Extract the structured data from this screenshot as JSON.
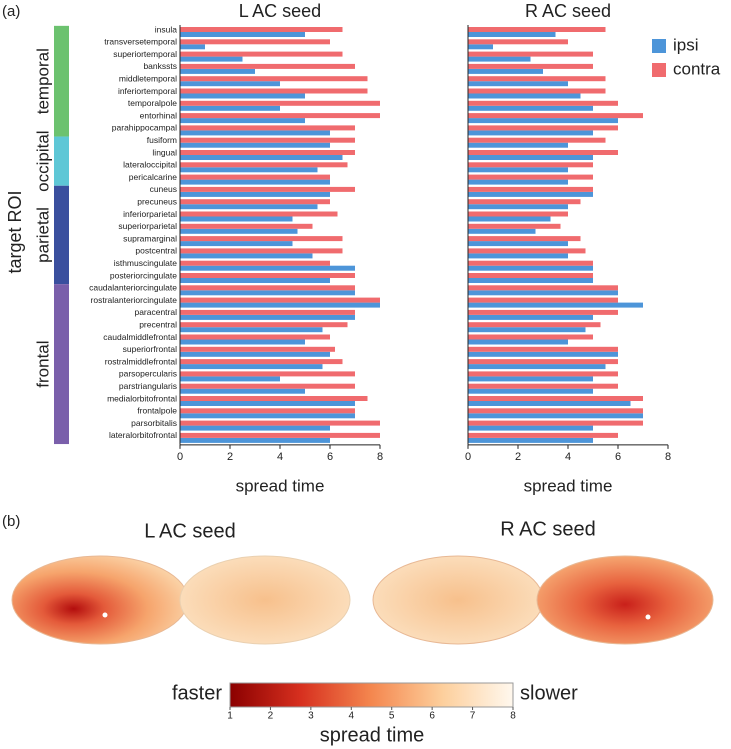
{
  "panel_labels": [
    "(a)",
    "(b)"
  ],
  "y_label": "target ROI",
  "groups": [
    {
      "name": "temporal",
      "color": "#6cc26f",
      "count": 9
    },
    {
      "name": "occipital",
      "color": "#5ec7d6",
      "count": 4
    },
    {
      "name": "parietal",
      "color": "#3a4f9e",
      "count": 8
    },
    {
      "name": "frontal",
      "color": "#7a5fab",
      "count": 13
    }
  ],
  "chart_data": [
    {
      "type": "barh",
      "title": "L AC seed",
      "xlabel": "spread time",
      "categories": [
        "insula",
        "transversetemporal",
        "superiortemporal",
        "bankssts",
        "middletemporal",
        "inferiortemporal",
        "temporalpole",
        "entorhinal",
        "parahippocampal",
        "fusiform",
        "lingual",
        "lateraloccipital",
        "pericalcarine",
        "cuneus",
        "precuneus",
        "inferiorparietal",
        "superiorparietal",
        "supramarginal",
        "postcentral",
        "isthmuscingulate",
        "posteriorcingulate",
        "caudalanteriorcingulate",
        "rostralanteriorcingulate",
        "paracentral",
        "precentral",
        "caudalmiddlefrontal",
        "superiorfrontal",
        "rostralmiddlefrontal",
        "parsopercularis",
        "parstriangularis",
        "medialorbitofrontal",
        "frontalpole",
        "parsorbitalis",
        "lateralorbitofrontal"
      ],
      "series": [
        {
          "name": "ipsi",
          "color": "#4d95d9",
          "values": [
            5,
            1,
            2.5,
            3,
            4,
            5,
            4,
            5,
            6,
            6,
            6.5,
            5.5,
            6,
            6,
            5.5,
            4.5,
            4.7,
            4.5,
            5.3,
            7,
            6,
            7,
            8,
            7,
            5.7,
            5,
            6,
            5.7,
            4,
            5,
            7,
            7,
            6,
            6
          ]
        },
        {
          "name": "contra",
          "color": "#f06b6e",
          "values": [
            6.5,
            6,
            6.5,
            7,
            7.5,
            7.5,
            8,
            8,
            7,
            7,
            7,
            6.7,
            6,
            7,
            6,
            6.3,
            5.3,
            6.5,
            6.5,
            6,
            7,
            7,
            8,
            7,
            6.7,
            6,
            6.2,
            6.5,
            7,
            7,
            7.5,
            7,
            8,
            8
          ]
        }
      ],
      "xlim": [
        0,
        8
      ],
      "xticks": [
        0,
        2,
        4,
        6,
        8
      ]
    },
    {
      "type": "barh",
      "title": "R AC seed",
      "xlabel": "spread time",
      "series": [
        {
          "name": "ipsi",
          "color": "#4d95d9",
          "values": [
            3.5,
            1,
            2.5,
            3,
            4,
            4.5,
            5,
            6,
            5,
            4,
            5,
            4,
            4,
            5,
            4,
            3.3,
            2.7,
            4,
            4,
            5,
            5,
            6,
            7,
            5,
            4.7,
            4,
            6,
            5.5,
            5,
            5,
            6.5,
            7,
            5,
            5
          ]
        },
        {
          "name": "contra",
          "color": "#f06b6e",
          "values": [
            5.5,
            4,
            5,
            5,
            5.5,
            5.5,
            6,
            7,
            6,
            5.5,
            6,
            5,
            5,
            5,
            4.5,
            4,
            3.7,
            4.5,
            4.7,
            5,
            5,
            6,
            6,
            6,
            5.3,
            5,
            6,
            6,
            6,
            6,
            7,
            7,
            7,
            6
          ]
        }
      ],
      "xlim": [
        0,
        8
      ],
      "xticks": [
        0,
        2,
        4,
        6,
        8
      ]
    }
  ],
  "panel_b": {
    "titles": [
      "L AC seed",
      "R AC seed"
    ],
    "colorbar": {
      "low": "faster",
      "high": "slower",
      "label": "spread time",
      "lim": [
        1,
        8
      ],
      "ticks": [
        1,
        2,
        3,
        4,
        5,
        6,
        7,
        8
      ]
    }
  }
}
